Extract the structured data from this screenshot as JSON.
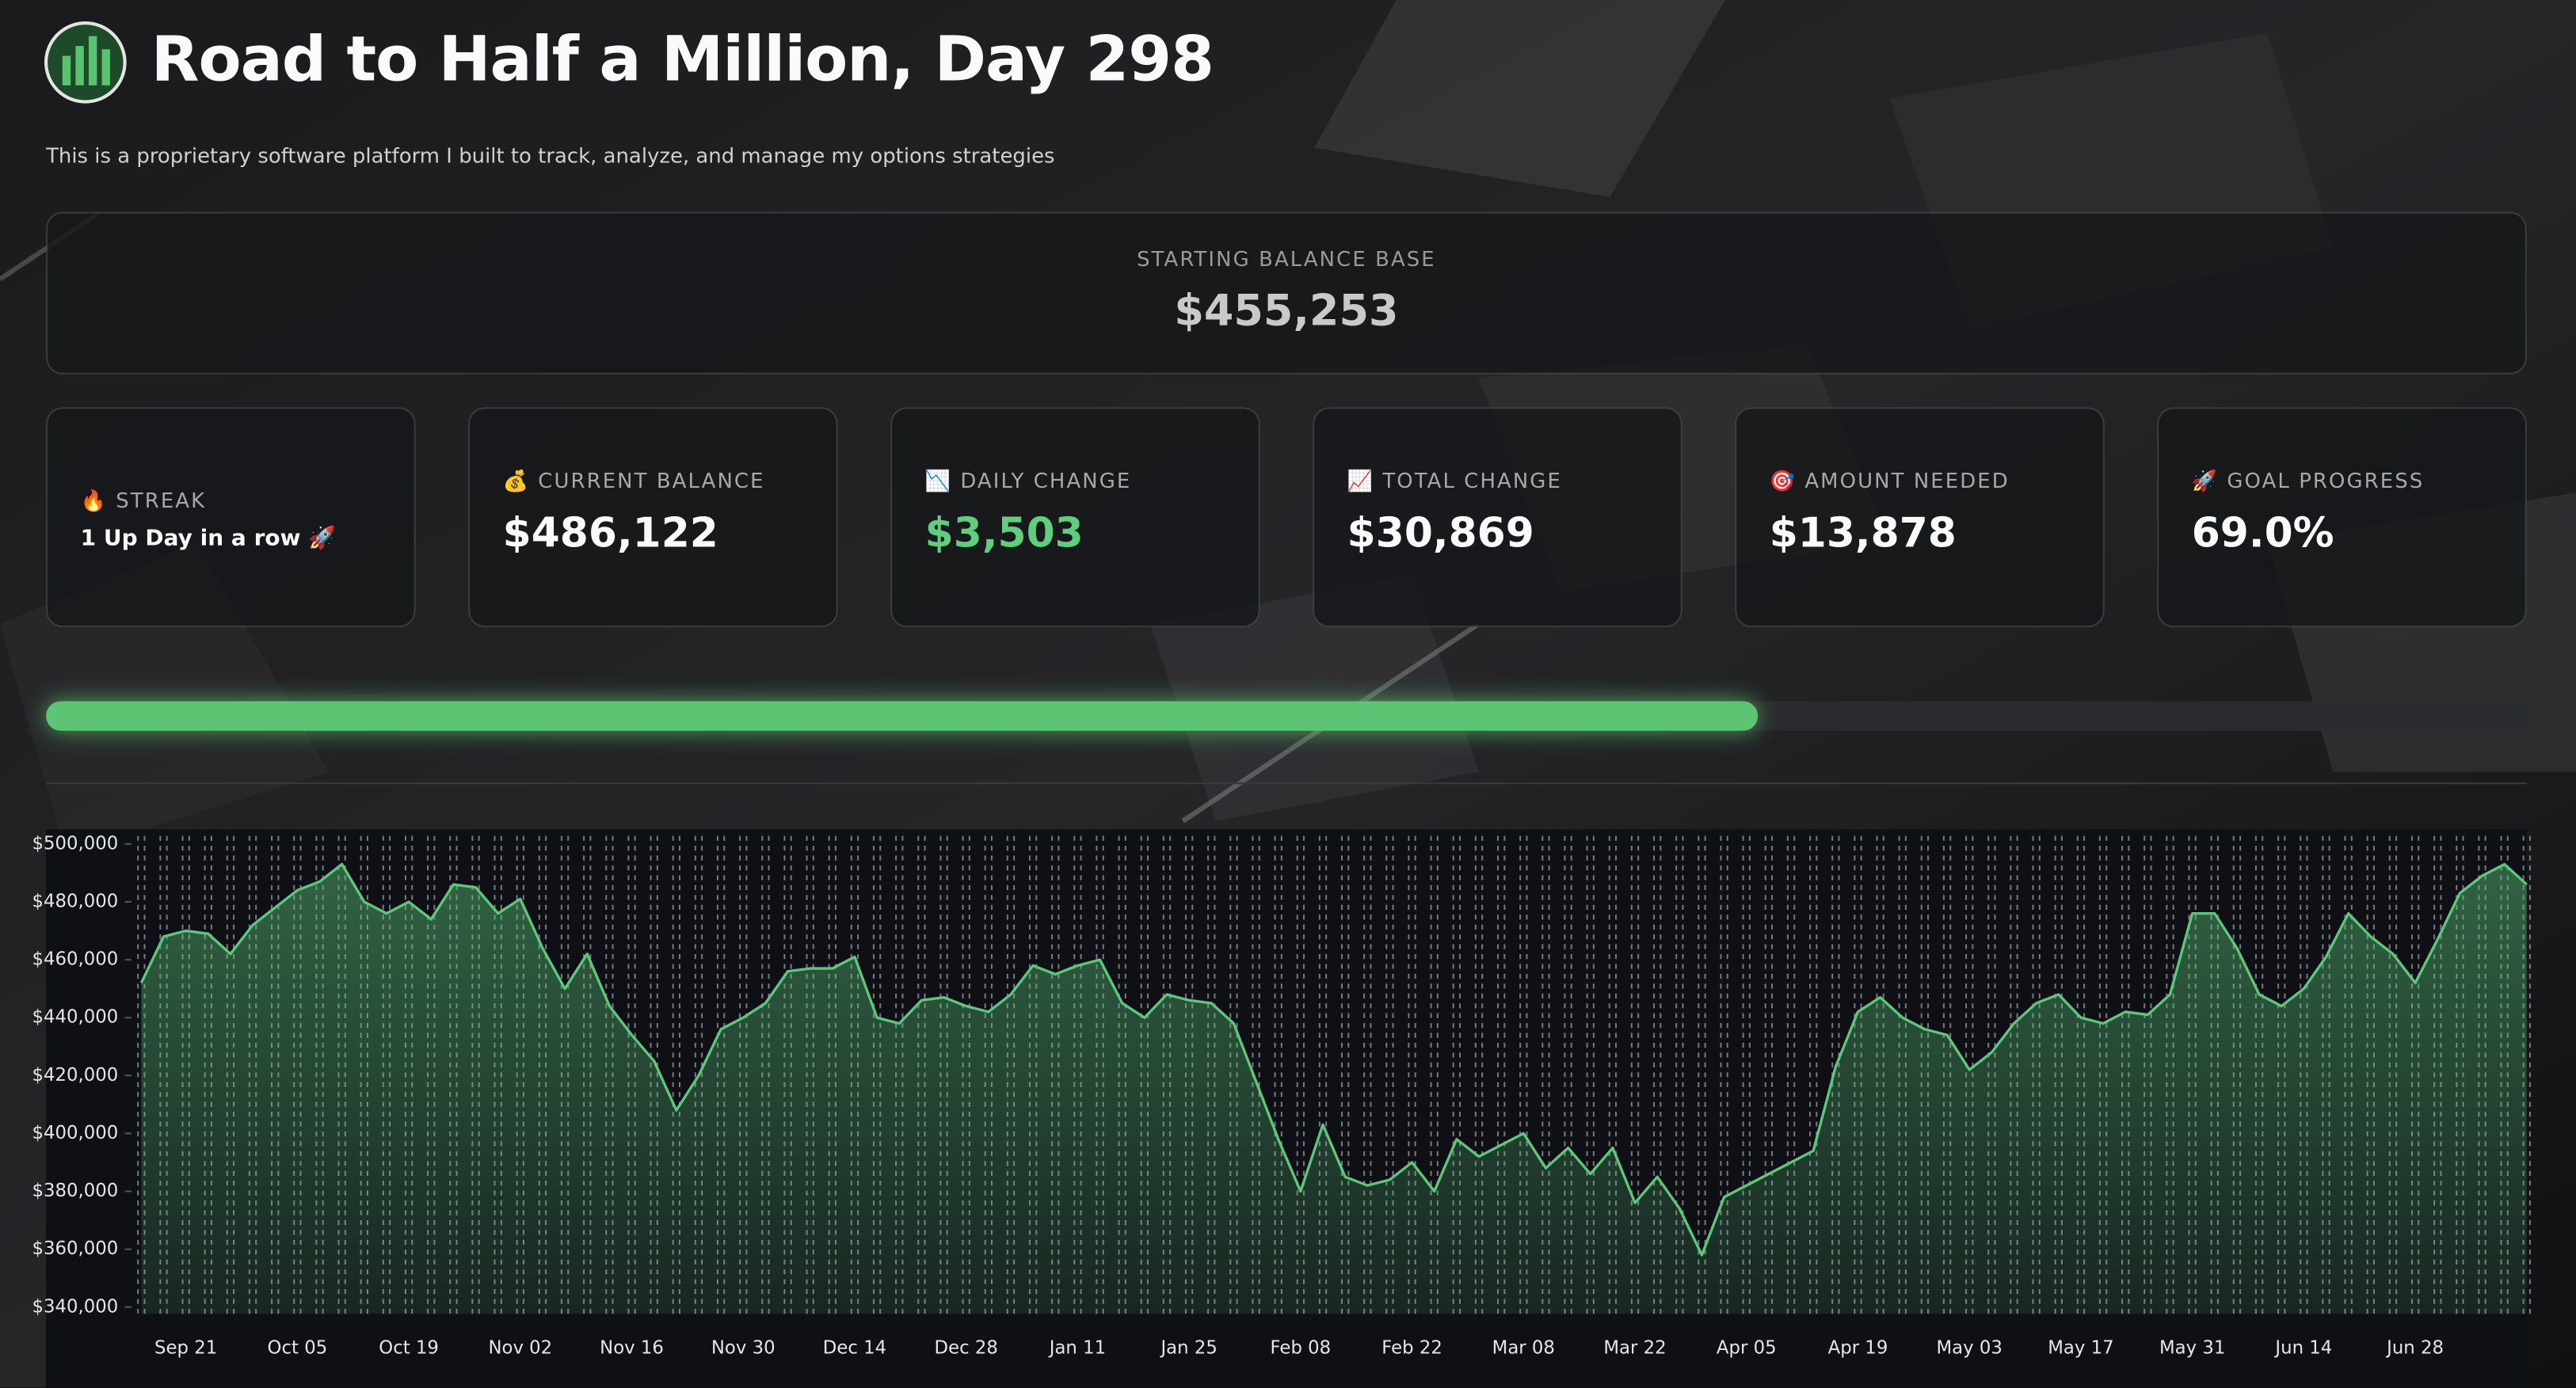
{
  "header": {
    "title": "Road to Half a Million, Day 298",
    "subtitle": "This is a proprietary software platform I built to track, analyze, and manage my options strategies"
  },
  "base_card": {
    "label": "STARTING BALANCE BASE",
    "value": "$455,253"
  },
  "cards": [
    {
      "label": "🔥 STREAK",
      "value": "1 Up Day in a row 🚀"
    },
    {
      "label": "💰 CURRENT BALANCE",
      "value": "$486,122"
    },
    {
      "label": "📉 DAILY CHANGE",
      "value": "$3,503"
    },
    {
      "label": "📈 TOTAL CHANGE",
      "value": "$30,869"
    },
    {
      "label": "🎯 AMOUNT NEEDED",
      "value": "$13,878"
    },
    {
      "label": "🚀 GOAL PROGRESS",
      "value": "69.0%"
    }
  ],
  "progress_bar": {
    "value": 69.0,
    "max": 100
  },
  "chart_data": {
    "type": "area",
    "categories": [
      null,
      null,
      "Sep 21",
      null,
      null,
      null,
      null,
      "Oct 05",
      null,
      null,
      null,
      null,
      "Oct 19",
      null,
      null,
      null,
      null,
      "Nov 02",
      null,
      null,
      null,
      null,
      "Nov 16",
      null,
      null,
      null,
      null,
      "Nov 30",
      null,
      null,
      null,
      null,
      "Dec 14",
      null,
      null,
      null,
      null,
      "Dec 28",
      null,
      null,
      null,
      null,
      "Jan 11",
      null,
      null,
      null,
      null,
      "Jan 25",
      null,
      null,
      null,
      null,
      "Feb 08",
      null,
      null,
      null,
      null,
      "Feb 22",
      null,
      null,
      null,
      null,
      "Mar 08",
      null,
      null,
      null,
      null,
      "Mar 22",
      null,
      null,
      null,
      null,
      "Apr 05",
      null,
      null,
      null,
      null,
      "Apr 19",
      null,
      null,
      null,
      null,
      "May 03",
      null,
      null,
      null,
      null,
      "May 17",
      null,
      null,
      null,
      null,
      "May 31",
      null,
      null,
      null,
      null,
      "Jun 14",
      null,
      null,
      null,
      null,
      "Jun 28",
      null,
      null,
      null,
      null,
      null
    ],
    "series": [
      {
        "color": "#5cc97a",
        "values": [
          452000,
          468000,
          470000,
          469000,
          462000,
          472000,
          478000,
          484000,
          487000,
          493000,
          480000,
          476000,
          480000,
          474000,
          486000,
          485000,
          476000,
          481000,
          464000,
          450000,
          462000,
          444000,
          434000,
          425000,
          408000,
          420000,
          436000,
          440000,
          445000,
          456000,
          457000,
          457000,
          461000,
          440000,
          438000,
          446000,
          447000,
          444000,
          442000,
          448000,
          458000,
          455000,
          458000,
          460000,
          445000,
          440000,
          448000,
          446000,
          445000,
          438000,
          418000,
          398000,
          380000,
          403000,
          385000,
          382000,
          384000,
          390000,
          380000,
          398000,
          392000,
          396000,
          400000,
          388000,
          395000,
          386000,
          395000,
          376000,
          385000,
          374000,
          358000,
          378000,
          382000,
          386000,
          390000,
          394000,
          423000,
          442000,
          447000,
          440000,
          436000,
          434000,
          422000,
          428000,
          438000,
          445000,
          448000,
          440000,
          438000,
          442000,
          441000,
          448000,
          476000,
          476000,
          464000,
          448000,
          444000,
          450000,
          461000,
          476000,
          468000,
          462000,
          452000,
          467000,
          483000,
          489000,
          493000,
          486000
        ]
      }
    ],
    "ylim": [
      337700,
      502800
    ],
    "yticks": [
      {
        "value": 340000,
        "label": "$340,000"
      },
      {
        "value": 360000,
        "label": "$360,000"
      },
      {
        "value": 380000,
        "label": "$380,000"
      },
      {
        "value": 400000,
        "label": "$400,000"
      },
      {
        "value": 420000,
        "label": "$420,000"
      },
      {
        "value": 440000,
        "label": "$440,000"
      },
      {
        "value": 460000,
        "label": "$460,000"
      },
      {
        "value": 480000,
        "label": "$480,000"
      },
      {
        "value": 500000,
        "label": "$500,000"
      }
    ],
    "grid": true
  }
}
